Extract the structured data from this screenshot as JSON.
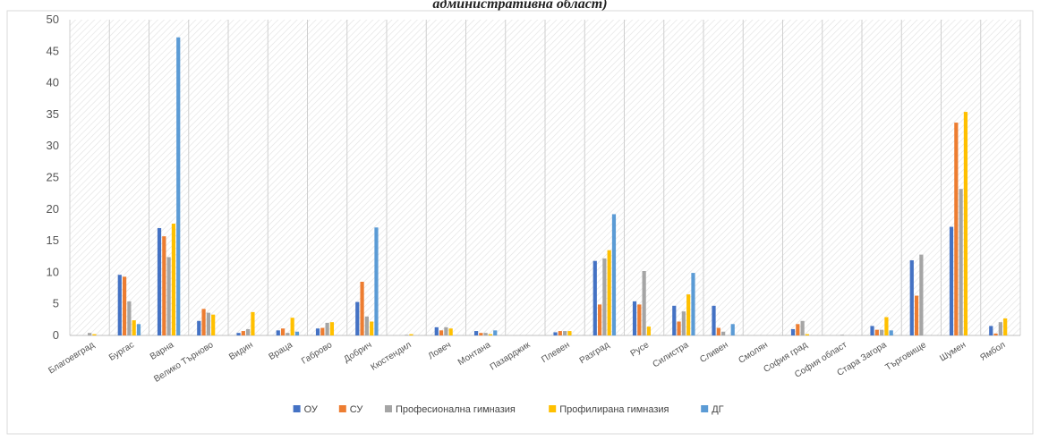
{
  "chart_data": {
    "type": "bar",
    "title": "административна област)",
    "xlabel": "",
    "ylabel": "",
    "ylim": [
      0,
      50
    ],
    "yticks": [
      0,
      5,
      10,
      15,
      20,
      25,
      30,
      35,
      40,
      45,
      50
    ],
    "grid": true,
    "legend": "bottom",
    "categories": [
      "Благоевград",
      "Бургас",
      "Варна",
      "Велико Търново",
      "Видин",
      "Враца",
      "Габрово",
      "Добрич",
      "Кюстендил",
      "Ловеч",
      "Монтана",
      "Пазарджик",
      "Плевен",
      "Разград",
      "Русе",
      "Силистра",
      "Сливен",
      "Смолян",
      "София град",
      "София област",
      "Стара Загора",
      "Търговище",
      "Шумен",
      "Ямбол"
    ],
    "series": [
      {
        "name": "ОУ",
        "color": "#4472c4",
        "values": [
          0,
          9.6,
          17.0,
          2.3,
          0.4,
          0.8,
          1.1,
          5.3,
          0,
          1.3,
          0.7,
          0,
          0.5,
          11.8,
          5.4,
          4.7,
          4.7,
          0,
          1.0,
          0,
          1.5,
          11.9,
          17.2,
          1.5
        ]
      },
      {
        "name": "СУ",
        "color": "#ed7d31",
        "values": [
          0,
          9.3,
          15.7,
          4.2,
          0.7,
          1.1,
          1.2,
          8.5,
          0,
          0.8,
          0.4,
          0,
          0.7,
          4.9,
          4.9,
          2.2,
          1.2,
          0,
          1.8,
          0,
          0.9,
          6.3,
          33.7,
          0.3
        ]
      },
      {
        "name": "Професионална гимназия",
        "color": "#a5a5a5",
        "values": [
          0.4,
          5.4,
          12.4,
          3.6,
          1.0,
          0.4,
          2.0,
          3.0,
          0.1,
          1.3,
          0.4,
          0,
          0.7,
          12.2,
          10.2,
          3.8,
          0.6,
          0,
          2.3,
          0.1,
          0.9,
          12.8,
          23.2,
          2.1
        ]
      },
      {
        "name": "Профилирана гимназия",
        "color": "#ffc000",
        "values": [
          0.2,
          2.4,
          17.7,
          3.3,
          3.7,
          2.8,
          2.1,
          2.2,
          0.2,
          1.1,
          0.2,
          0,
          0.7,
          13.5,
          1.4,
          6.5,
          0,
          0,
          0.2,
          0,
          2.9,
          0,
          35.4,
          2.7
        ]
      },
      {
        "name": "ДГ",
        "color": "#5b9bd5",
        "values": [
          0,
          1.8,
          47.2,
          0,
          0,
          0.6,
          0,
          17.1,
          0,
          0,
          0.8,
          0,
          0,
          19.2,
          0,
          9.9,
          1.8,
          0,
          0,
          0,
          0.8,
          0,
          0,
          0
        ]
      }
    ]
  }
}
